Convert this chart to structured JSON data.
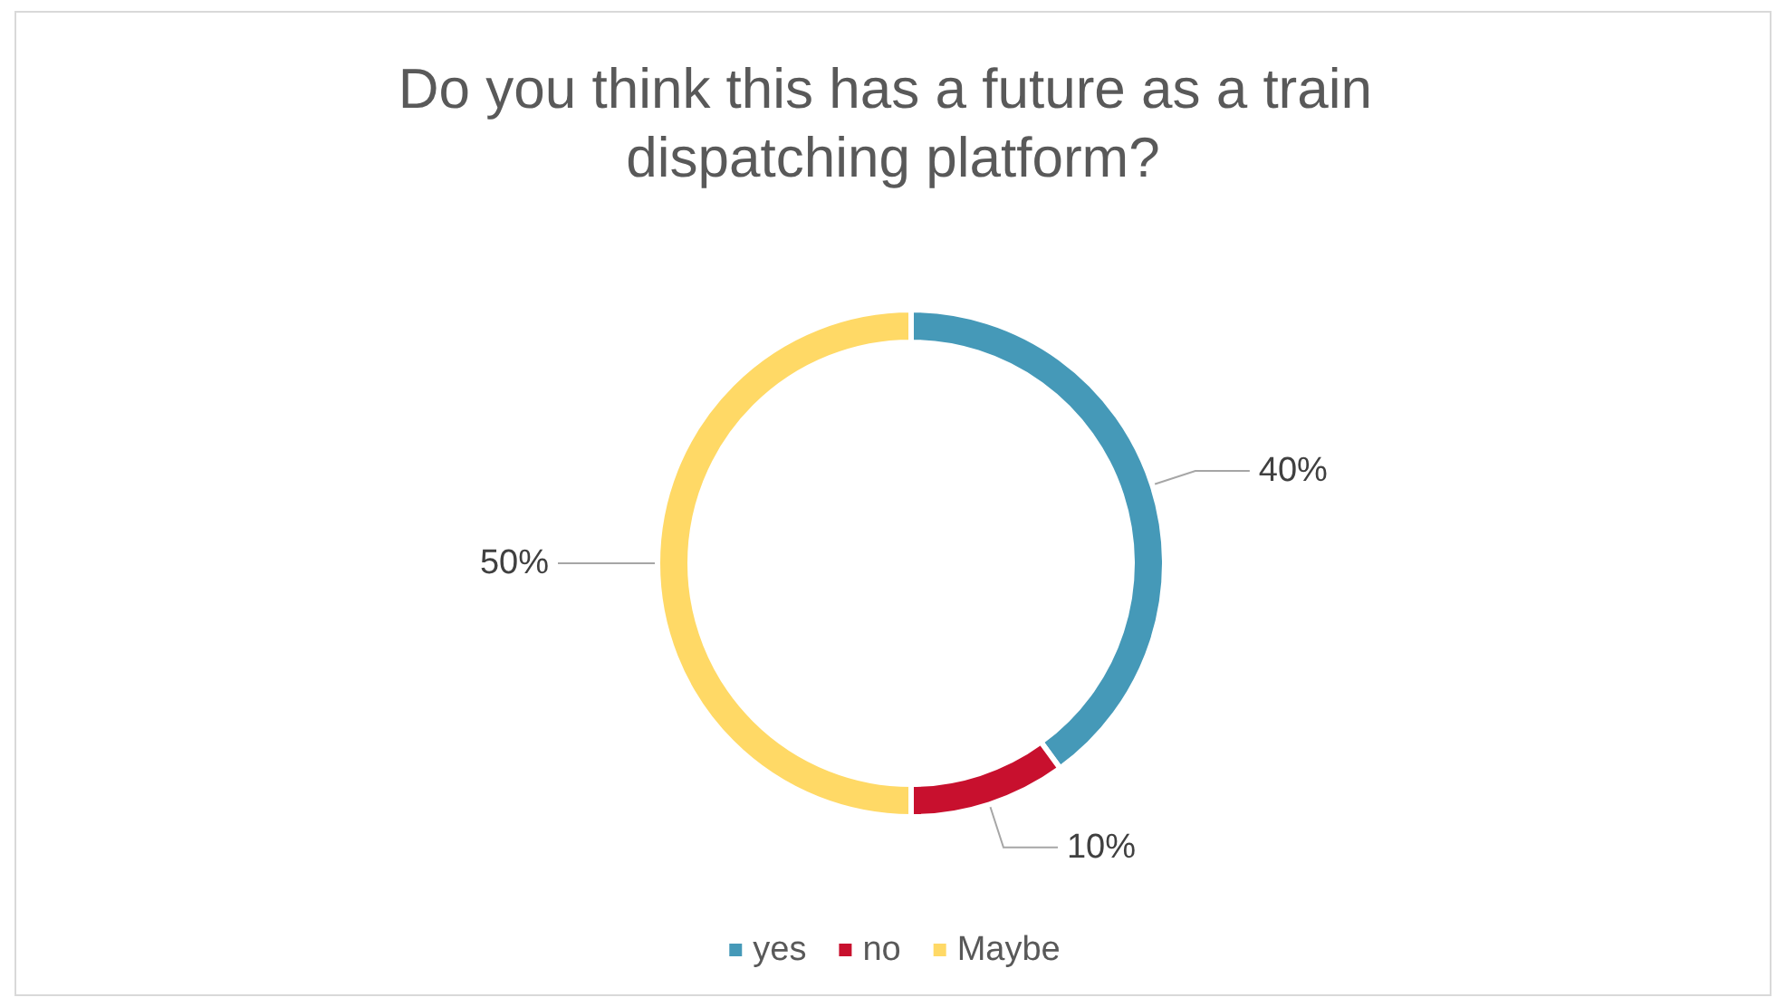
{
  "chart_data": {
    "type": "donut",
    "title": "Do you think this has a future as a train dispatching platform?",
    "categories": [
      "yes",
      "no",
      "Maybe"
    ],
    "values": [
      40,
      10,
      50
    ],
    "value_labels": [
      "40%",
      "10%",
      "50%"
    ],
    "colors": [
      "#4599b8",
      "#c8102e",
      "#ffd966"
    ],
    "legend": "bottom"
  }
}
